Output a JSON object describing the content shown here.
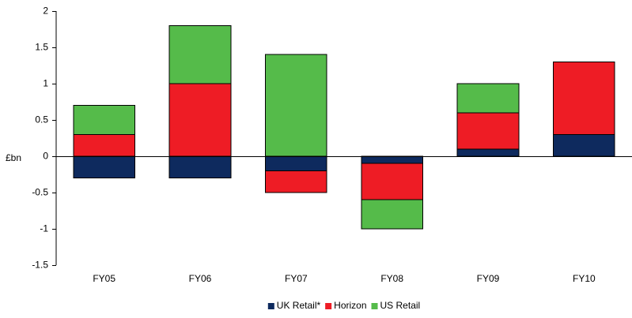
{
  "chart_data": {
    "type": "bar",
    "stacked": true,
    "title": "",
    "xlabel": "",
    "ylabel": "£bn",
    "ylim": [
      -1.5,
      2
    ],
    "yticks": [
      2,
      1.5,
      1,
      0.5,
      0,
      -0.5,
      -1,
      -1.5
    ],
    "ytick_labels": [
      "2",
      "1.5",
      "1",
      "0.5",
      "0",
      "-0.5",
      "-1",
      "-1.5"
    ],
    "grid": false,
    "legend_position": "bottom",
    "categories": [
      "FY05",
      "FY06",
      "FY07",
      "FY08",
      "FY09",
      "FY10"
    ],
    "series": [
      {
        "name": "UK Retail*",
        "color": "#0e2a5e",
        "values": [
          -0.3,
          -0.3,
          -0.2,
          -0.1,
          0.1,
          0.3
        ]
      },
      {
        "name": "Horizon",
        "color": "#ee1c25",
        "values": [
          0.3,
          1.0,
          -0.3,
          -0.5,
          0.5,
          1.0
        ]
      },
      {
        "name": "US Retail",
        "color": "#55bb4a",
        "values": [
          0.4,
          0.8,
          1.4,
          -0.4,
          0.4,
          0.0
        ]
      }
    ]
  }
}
